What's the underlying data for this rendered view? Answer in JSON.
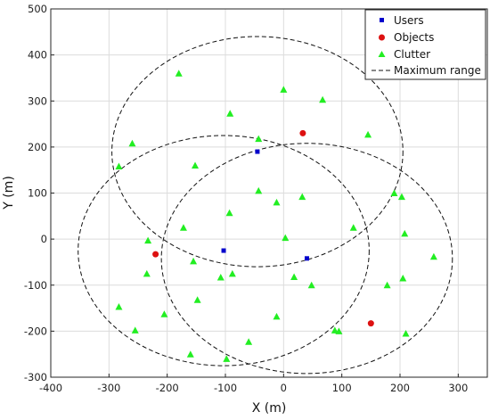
{
  "chart_data": {
    "type": "scatter",
    "xlabel": "X (m)",
    "ylabel": "Y (m)",
    "xlim": [
      -400,
      350
    ],
    "ylim": [
      -300,
      500
    ],
    "xticks": [
      -400,
      -300,
      -200,
      -100,
      0,
      100,
      200,
      300
    ],
    "yticks": [
      -300,
      -200,
      -100,
      0,
      100,
      200,
      300,
      400,
      500
    ],
    "grid": true,
    "legend_position": "top-right",
    "series": [
      {
        "name": "Users",
        "marker": "square",
        "color": "#0000cc",
        "points": [
          [
            -45,
            190
          ],
          [
            -103,
            -25
          ],
          [
            40,
            -42
          ]
        ]
      },
      {
        "name": "Objects",
        "marker": "circle",
        "color": "#dd1111",
        "points": [
          [
            33,
            230
          ],
          [
            -220,
            -33
          ],
          [
            150,
            -183
          ]
        ]
      },
      {
        "name": "Clutter",
        "marker": "triangle",
        "color": "#22ee22",
        "points": [
          [
            -180,
            360
          ],
          [
            0,
            325
          ],
          [
            67,
            303
          ],
          [
            -92,
            273
          ],
          [
            -43,
            218
          ],
          [
            145,
            227
          ],
          [
            -260,
            208
          ],
          [
            -283,
            158
          ],
          [
            -152,
            160
          ],
          [
            -43,
            105
          ],
          [
            -12,
            80
          ],
          [
            32,
            92
          ],
          [
            190,
            100
          ],
          [
            203,
            92
          ],
          [
            -93,
            57
          ],
          [
            -172,
            25
          ],
          [
            120,
            25
          ],
          [
            208,
            12
          ],
          [
            -233,
            -3
          ],
          [
            3,
            3
          ],
          [
            -155,
            -48
          ],
          [
            258,
            -38
          ],
          [
            -235,
            -75
          ],
          [
            -108,
            -83
          ],
          [
            -88,
            -75
          ],
          [
            18,
            -82
          ],
          [
            48,
            -100
          ],
          [
            178,
            -100
          ],
          [
            205,
            -85
          ],
          [
            -148,
            -132
          ],
          [
            -283,
            -147
          ],
          [
            -205,
            -163
          ],
          [
            -12,
            -168
          ],
          [
            -255,
            -198
          ],
          [
            88,
            -198
          ],
          [
            95,
            -200
          ],
          [
            -60,
            -223
          ],
          [
            -160,
            -250
          ],
          [
            -98,
            -260
          ],
          [
            210,
            -205
          ]
        ]
      },
      {
        "name": "Maximum range",
        "marker": "dashed-circle",
        "color": "#111111",
        "circles": [
          {
            "center": [
              -45,
              190
            ],
            "radius": 250
          },
          {
            "center": [
              -103,
              -25
            ],
            "radius": 250
          },
          {
            "center": [
              40,
              -42
            ],
            "radius": 250
          }
        ]
      }
    ]
  }
}
